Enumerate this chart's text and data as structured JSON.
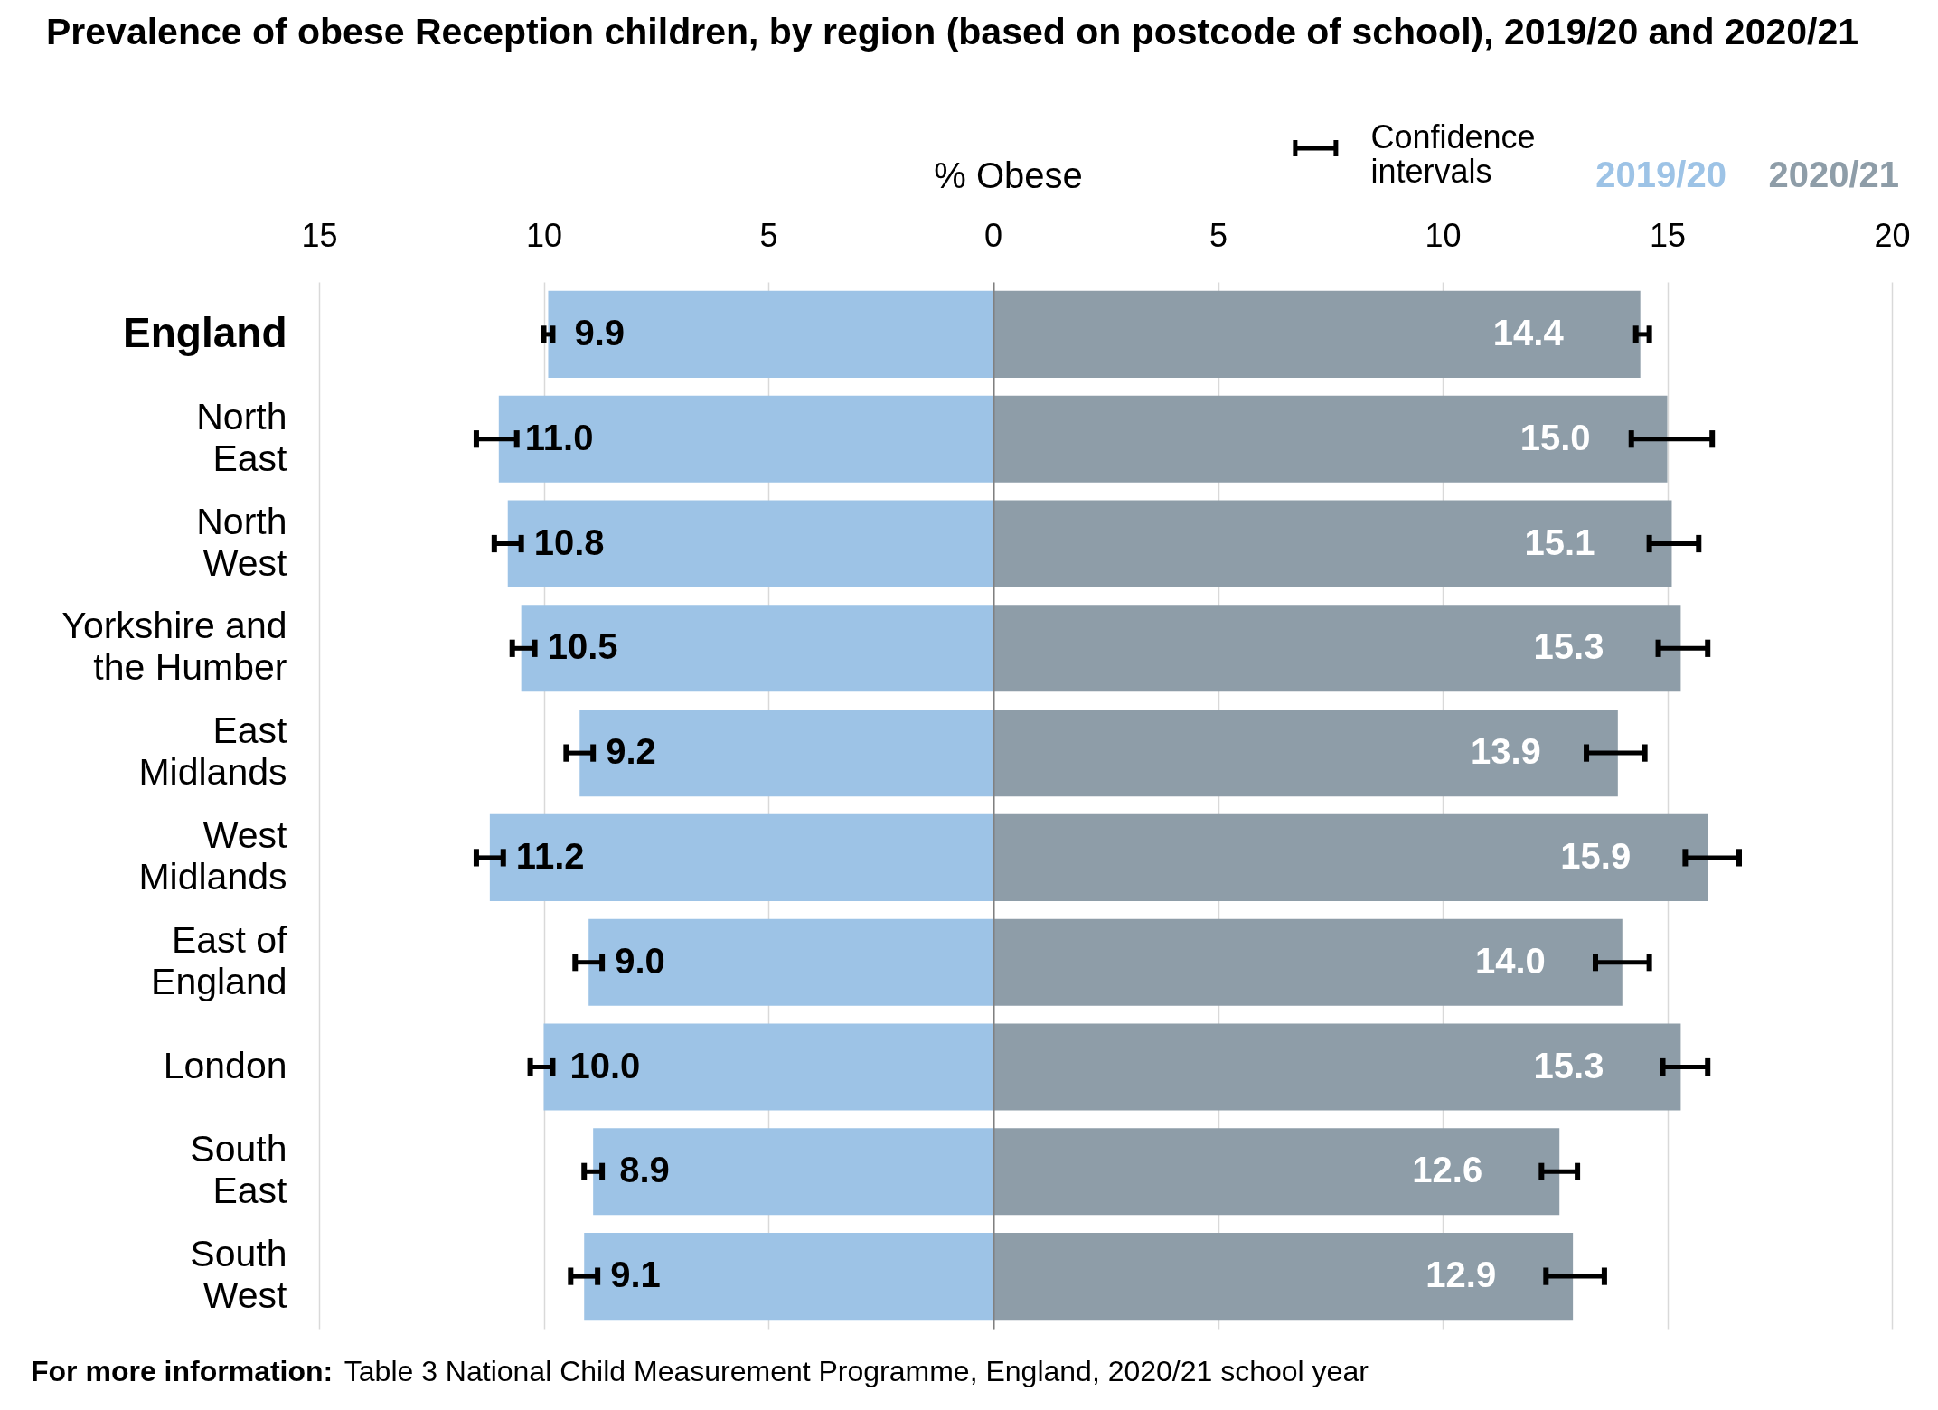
{
  "chart_data": [
    {
      "type": "bar",
      "orientation": "horizontal",
      "title": "Prevalence of obese Reception children, by region (based on postcode of school), 2019/20 and 2020/21",
      "categories": [
        "England",
        "North East",
        "North West",
        "Yorkshire and the Humber",
        "East Midlands",
        "West Midlands",
        "East of England",
        "London",
        "South East",
        "South West"
      ],
      "series": [
        {
          "name": "2019/20",
          "color": "#9dc3e6",
          "values": [
            9.9,
            11.0,
            10.8,
            10.5,
            9.2,
            11.2,
            9.0,
            10.0,
            8.9,
            9.1
          ],
          "value_labels": [
            "9.9",
            "11.0",
            "10.8",
            "10.5",
            "9.2",
            "11.2",
            "9.0",
            "10.0",
            "8.9",
            "9.1"
          ],
          "errors": [
            [
              9.8,
              10.0
            ],
            [
              10.6,
              11.5
            ],
            [
              10.5,
              11.1
            ],
            [
              10.2,
              10.7
            ],
            [
              8.9,
              9.5
            ],
            [
              10.9,
              11.5
            ],
            [
              8.7,
              9.3
            ],
            [
              9.8,
              10.3
            ],
            [
              8.7,
              9.1
            ],
            [
              8.8,
              9.4
            ]
          ]
        }
      ],
      "xlim": [
        15,
        0
      ],
      "xticks": [
        15,
        10,
        5,
        0
      ],
      "grid": "x",
      "legend": "top right",
      "annotations": [
        "Confidence intervals",
        "For more information:",
        "Table 3 National Child Measurement Programme, England, 2020/21 school year"
      ]
    },
    {
      "type": "bar",
      "orientation": "horizontal",
      "xlabel": "% Obese",
      "categories": [
        "England",
        "North East",
        "North West",
        "Yorkshire and the Humber",
        "East Midlands",
        "West Midlands",
        "East of England",
        "London",
        "South East",
        "South West"
      ],
      "series": [
        {
          "name": "2020/21",
          "color": "#8e9da8",
          "values": [
            14.4,
            15.0,
            15.1,
            15.3,
            13.9,
            15.9,
            14.0,
            15.3,
            12.6,
            12.9
          ],
          "value_labels": [
            "14.4",
            "15.0",
            "15.1",
            "15.3",
            "13.9",
            "15.9",
            "14.0",
            "15.3",
            "12.6",
            "12.9"
          ],
          "errors": [
            [
              14.3,
              14.6
            ],
            [
              14.2,
              16.0
            ],
            [
              14.6,
              15.7
            ],
            [
              14.8,
              15.9
            ],
            [
              13.2,
              14.5
            ],
            [
              15.4,
              16.6
            ],
            [
              13.4,
              14.6
            ],
            [
              14.9,
              15.9
            ],
            [
              12.2,
              13.0
            ],
            [
              12.3,
              13.6
            ]
          ]
        }
      ],
      "xlim": [
        0,
        20
      ],
      "xticks": [
        5,
        10,
        15,
        20
      ],
      "tick_labels": "x",
      "grid": "x",
      "legend": "top right"
    }
  ]
}
